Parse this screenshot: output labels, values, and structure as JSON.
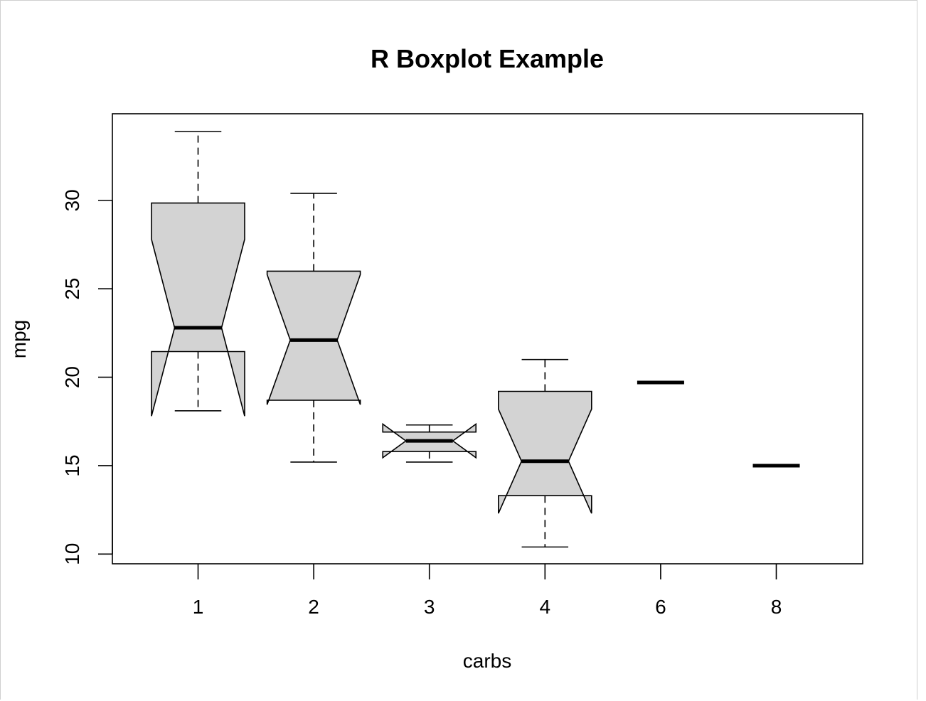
{
  "chart_data": {
    "type": "boxplot",
    "title": "R Boxplot Example",
    "xlabel": "carbs",
    "ylabel": "mpg",
    "categories": [
      "1",
      "2",
      "3",
      "4",
      "6",
      "8"
    ],
    "yticks": [
      "10",
      "15",
      "20",
      "25",
      "30"
    ],
    "ylim": [
      9.45,
      34.9
    ],
    "notch": true,
    "box_fill": "#d3d3d3",
    "grid": false,
    "boxes": [
      {
        "category": "1",
        "min": 18.1,
        "q1": 21.45,
        "median": 22.8,
        "q3": 29.85,
        "max": 33.9,
        "notch_low": 17.8,
        "notch_high": 27.8
      },
      {
        "category": "2",
        "min": 15.2,
        "q1": 18.7,
        "median": 22.1,
        "q3": 26.0,
        "max": 30.4,
        "notch_low": 18.45,
        "notch_high": 25.8
      },
      {
        "category": "3",
        "min": 15.2,
        "q1": 15.8,
        "median": 16.4,
        "q3": 16.9,
        "max": 17.3,
        "notch_low": 15.45,
        "notch_high": 17.35
      },
      {
        "category": "4",
        "min": 10.4,
        "q1": 13.3,
        "median": 15.25,
        "q3": 19.2,
        "max": 21.0,
        "notch_low": 12.3,
        "notch_high": 18.2
      },
      {
        "category": "6",
        "min": 19.7,
        "q1": 19.7,
        "median": 19.7,
        "q3": 19.7,
        "max": 19.7,
        "notch_low": 19.7,
        "notch_high": 19.7
      },
      {
        "category": "8",
        "min": 15.0,
        "q1": 15.0,
        "median": 15.0,
        "q3": 15.0,
        "max": 15.0,
        "notch_low": 15.0,
        "notch_high": 15.0
      }
    ]
  }
}
